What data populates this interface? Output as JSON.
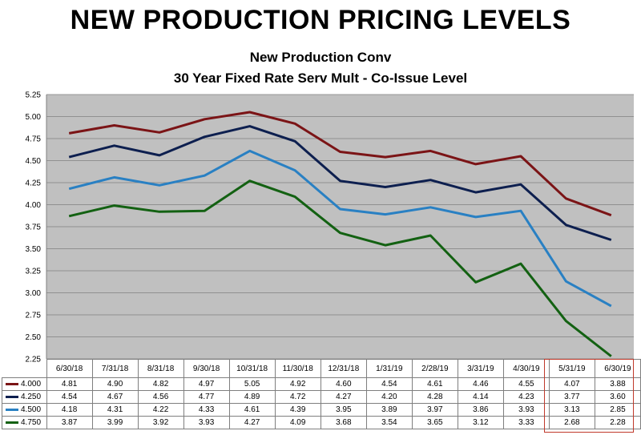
{
  "chart_data": {
    "type": "line",
    "title": "NEW PRODUCTION PRICING LEVELS",
    "subtitle_1": "New Production Conv",
    "subtitle_2": "30 Year Fixed Rate Serv Mult - Co-Issue Level",
    "categories": [
      "6/30/18",
      "7/31/18",
      "8/31/18",
      "9/30/18",
      "10/31/18",
      "11/30/18",
      "12/31/18",
      "1/31/19",
      "2/28/19",
      "3/31/19",
      "4/30/19",
      "5/31/19",
      "6/30/19"
    ],
    "ylim": [
      2.25,
      5.25
    ],
    "yticks": [
      "5.25",
      "5.00",
      "4.75",
      "4.50",
      "4.25",
      "4.00",
      "3.75",
      "3.50",
      "3.25",
      "3.00",
      "2.75",
      "2.50",
      "2.25"
    ],
    "grid": true,
    "highlighted_categories": [
      "5/31/19",
      "6/30/19"
    ],
    "series": [
      {
        "name": "4.000",
        "color": "#7b1416",
        "values": [
          4.81,
          4.9,
          4.82,
          4.97,
          5.05,
          4.92,
          4.6,
          4.54,
          4.61,
          4.46,
          4.55,
          4.07,
          3.88
        ],
        "labels": [
          "4.81",
          "4.90",
          "4.82",
          "4.97",
          "5.05",
          "4.92",
          "4.60",
          "4.54",
          "4.61",
          "4.46",
          "4.55",
          "4.07",
          "3.88"
        ]
      },
      {
        "name": "4.250",
        "color": "#0d1f4f",
        "values": [
          4.54,
          4.67,
          4.56,
          4.77,
          4.89,
          4.72,
          4.27,
          4.2,
          4.28,
          4.14,
          4.23,
          3.77,
          3.6
        ],
        "labels": [
          "4.54",
          "4.67",
          "4.56",
          "4.77",
          "4.89",
          "4.72",
          "4.27",
          "4.20",
          "4.28",
          "4.14",
          "4.23",
          "3.77",
          "3.60"
        ]
      },
      {
        "name": "4.500",
        "color": "#2980c3",
        "values": [
          4.18,
          4.31,
          4.22,
          4.33,
          4.61,
          4.39,
          3.95,
          3.89,
          3.97,
          3.86,
          3.93,
          3.13,
          2.85
        ],
        "labels": [
          "4.18",
          "4.31",
          "4.22",
          "4.33",
          "4.61",
          "4.39",
          "3.95",
          "3.89",
          "3.97",
          "3.86",
          "3.93",
          "3.13",
          "2.85"
        ]
      },
      {
        "name": "4.750",
        "color": "#136112",
        "values": [
          3.87,
          3.99,
          3.92,
          3.93,
          4.27,
          4.09,
          3.68,
          3.54,
          3.65,
          3.12,
          3.33,
          2.68,
          2.28
        ],
        "labels": [
          "3.87",
          "3.99",
          "3.92",
          "3.93",
          "4.27",
          "4.09",
          "3.68",
          "3.54",
          "3.65",
          "3.12",
          "3.33",
          "2.68",
          "2.28"
        ]
      }
    ]
  }
}
